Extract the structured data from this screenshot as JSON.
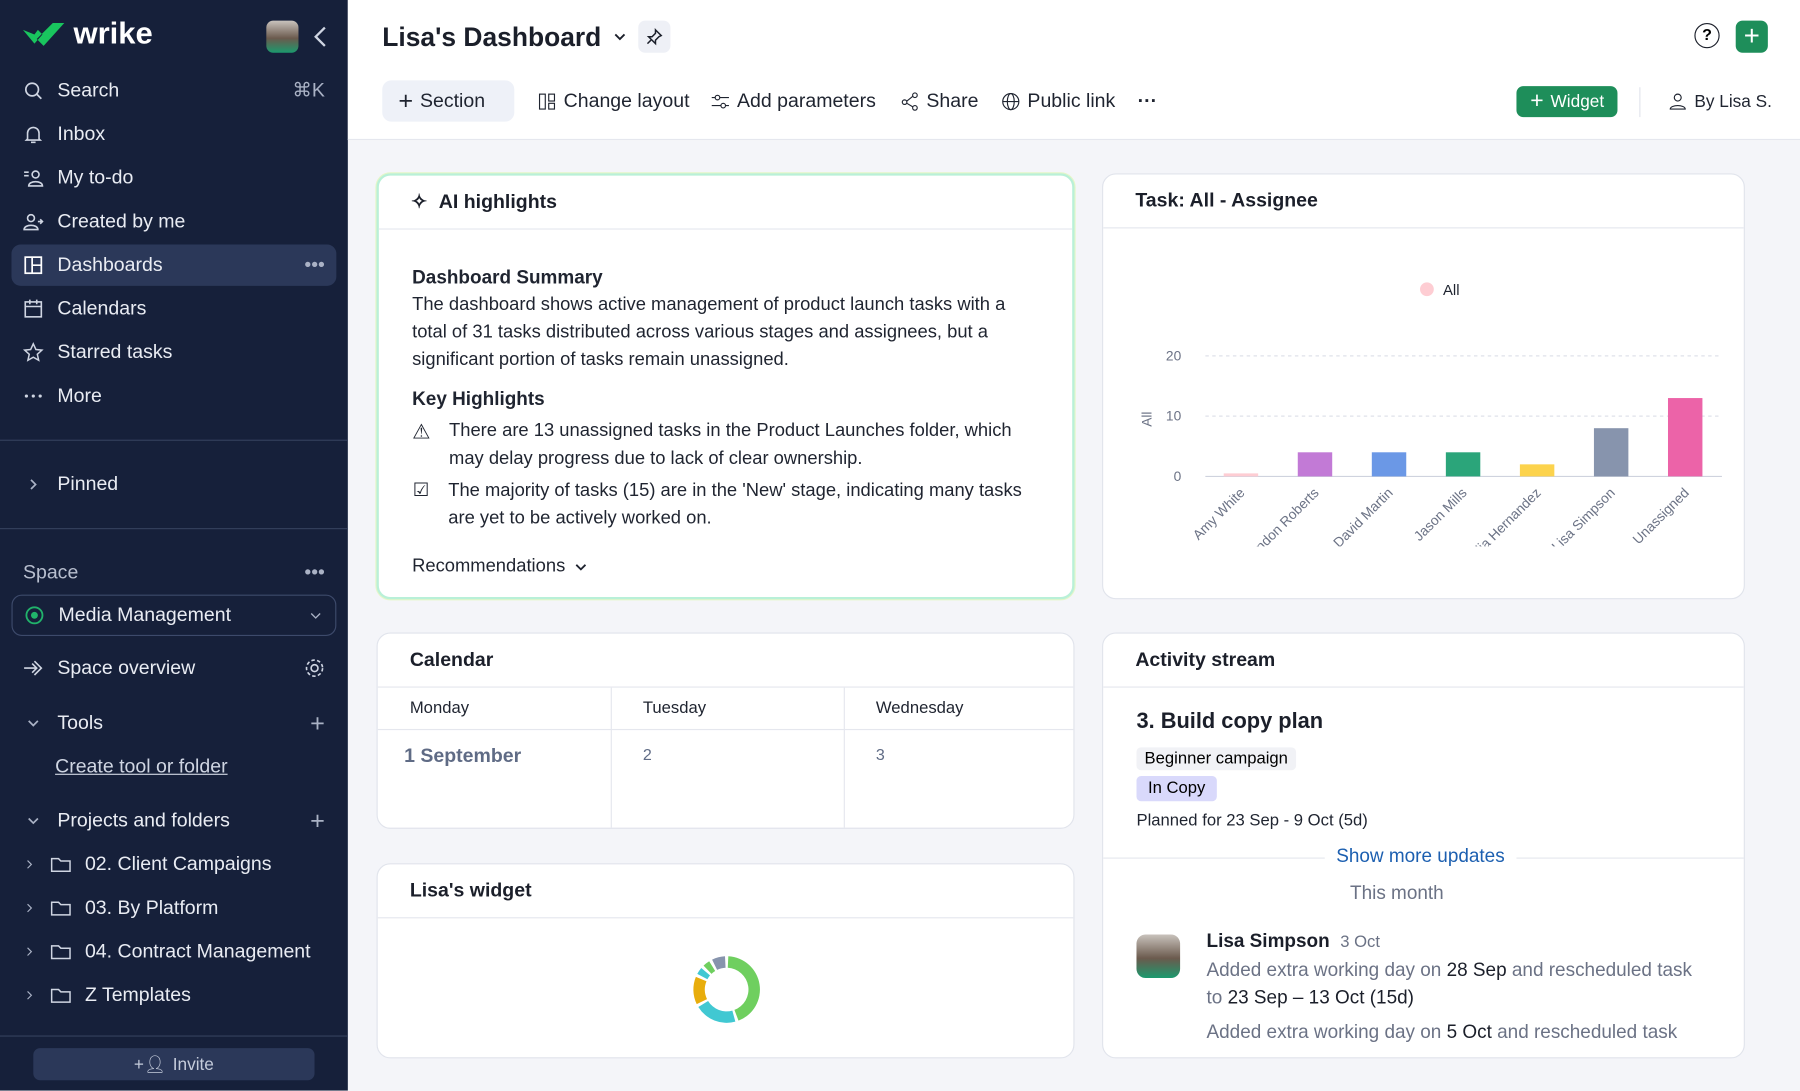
{
  "sidebar": {
    "brand": "wrike",
    "nav": [
      {
        "label": "Search",
        "icon": "search-icon",
        "shortcut": "⌘K"
      },
      {
        "label": "Inbox",
        "icon": "bell-icon"
      },
      {
        "label": "My to-do",
        "icon": "todo-user-icon"
      },
      {
        "label": "Created by me",
        "icon": "user-arrow-icon"
      },
      {
        "label": "Dashboards",
        "icon": "dashboard-icon",
        "active": true
      },
      {
        "label": "Calendars",
        "icon": "calendar-icon"
      },
      {
        "label": "Starred tasks",
        "icon": "star-icon"
      },
      {
        "label": "More",
        "icon": "more-icon"
      }
    ],
    "pinned": "Pinned",
    "space_label": "Space",
    "space_selected": "Media Management",
    "space_overview": "Space overview",
    "tools": "Tools",
    "create_tool": "Create tool or folder",
    "projects": "Projects and folders",
    "folders": [
      "02. Client Campaigns",
      "03. By Platform",
      "04. Contract Management",
      "Z Templates"
    ],
    "invite": "Invite"
  },
  "header": {
    "title": "Lisa's Dashboard",
    "toolbar": {
      "section": "Section",
      "change_layout": "Change layout",
      "add_parameters": "Add parameters",
      "share": "Share",
      "public_link": "Public link",
      "widget": "Widget",
      "owner": "By Lisa S."
    }
  },
  "ai": {
    "title": "AI highlights",
    "summary_title": "Dashboard Summary",
    "summary": "The dashboard shows active management of product launch tasks with a total of 31 tasks distributed across various stages and assignees, but a significant portion of tasks remain unassigned.",
    "key_title": "Key Highlights",
    "highlights": [
      {
        "icon": "warning-icon",
        "text": "There are 13 unassigned tasks in the Product Launches folder, which may delay progress due to lack of clear ownership."
      },
      {
        "icon": "checkbox-icon",
        "text": "The majority of tasks (15) are in the 'New' stage, indicating many tasks are yet to be actively worked on."
      }
    ],
    "recommendations": "Recommendations"
  },
  "chart_data": {
    "type": "bar",
    "title": "Task: All - Assignee",
    "legend": [
      "All"
    ],
    "legend_placement": "top-center",
    "ylabel": "All",
    "ylim": [
      0,
      20
    ],
    "yticks": [
      "0",
      "10",
      "20"
    ],
    "grid": true,
    "categories": [
      "Amy White",
      "Brandon Roberts",
      "David Martin",
      "Jason Mills",
      "Julia Hernandez",
      "Lisa Simpson",
      "Unassigned"
    ],
    "values": [
      0.5,
      4,
      4,
      4,
      2,
      8,
      13
    ],
    "colors": [
      "#fecdd3",
      "#c27ad6",
      "#6b98e6",
      "#2ba57a",
      "#fcd34d",
      "#8794ad",
      "#ec63a8"
    ]
  },
  "calendar": {
    "title": "Calendar",
    "days": [
      {
        "name": "Monday",
        "date": "1 September"
      },
      {
        "name": "Tuesday",
        "date": "2"
      },
      {
        "name": "Wednesday",
        "date": "3"
      }
    ]
  },
  "widget": {
    "title": "Lisa's widget",
    "donut": {
      "values": [
        45,
        22,
        15,
        5,
        5,
        8
      ],
      "colors": [
        "#6fcf5f",
        "#41c8d2",
        "#e8ad0c",
        "#41c8d2",
        "#6fcf5f",
        "#8794ad"
      ]
    }
  },
  "activity": {
    "title": "Activity stream",
    "task": "3. Build copy plan",
    "tag": "Beginner campaign",
    "status": "In Copy",
    "planned": "Planned for 23 Sep - 9 Oct (5d)",
    "show_more": "Show more updates",
    "period": "This month",
    "entry": {
      "user": "Lisa Simpson",
      "date": "3 Oct",
      "t1": "Added extra working day on ",
      "b1": "28 Sep",
      "t2": " and rescheduled task to ",
      "b2": "23 Sep – 13 Oct (15d)"
    },
    "entry2": {
      "t1": "Added extra working day on ",
      "b1": "5 Oct",
      "t2": " and rescheduled task"
    }
  },
  "colors": {
    "sidebar": "#16203a",
    "accent": "#1e8e5a",
    "link": "#1c5fb0"
  }
}
